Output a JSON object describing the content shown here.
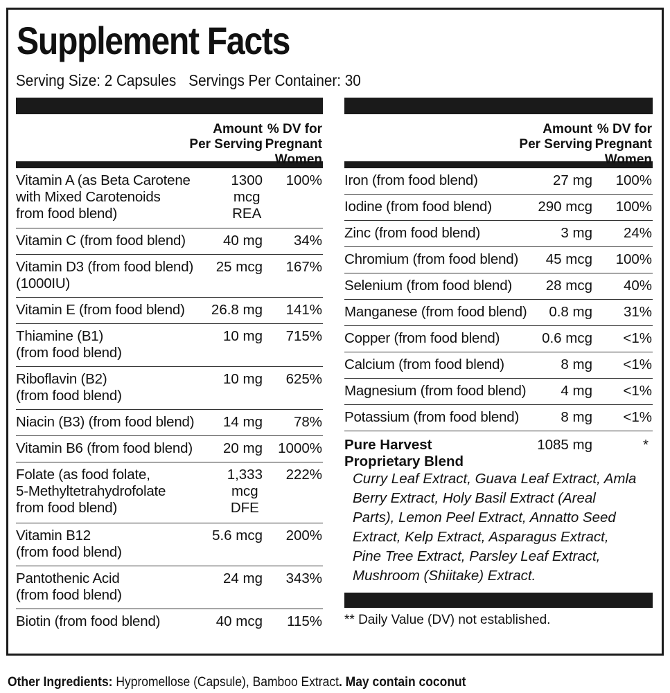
{
  "title": "Supplement Facts",
  "serving_size": "Serving Size: 2 Capsules",
  "servings_per_container": "Servings Per Container: 30",
  "header": {
    "amount": "Amount\nPer Serving",
    "dv": "% DV for\nPregnant\nWomen"
  },
  "left_rows": [
    {
      "name": "Vitamin A (as Beta Carotene\nwith Mixed Carotenoids\nfrom food blend)",
      "amount": "1300\nmcg\nREA",
      "dv": "100%"
    },
    {
      "name": "Vitamin C (from food blend)",
      "amount": "40 mg",
      "dv": "34%"
    },
    {
      "name": "Vitamin D3 (from food blend)\n(1000IU)",
      "amount": "25 mcg",
      "dv": "167%"
    },
    {
      "name": "Vitamin E (from food blend)",
      "amount": "26.8 mg",
      "dv": "141%"
    },
    {
      "name": "Thiamine (B1)\n(from food blend)",
      "amount": "10 mg",
      "dv": "715%"
    },
    {
      "name": "Riboflavin (B2)\n(from food blend)",
      "amount": "10 mg",
      "dv": "625%"
    },
    {
      "name": "Niacin (B3) (from food blend)",
      "amount": "14 mg",
      "dv": "78%"
    },
    {
      "name": "Vitamin B6 (from food blend)",
      "amount": "20 mg",
      "dv": "1000%"
    },
    {
      "name": "Folate (as food folate,\n5-Methyltetrahydrofolate\nfrom food blend)",
      "amount": "1,333\nmcg\nDFE",
      "dv": "222%"
    },
    {
      "name": "Vitamin B12\n(from food blend)",
      "amount": "5.6 mcg",
      "dv": "200%"
    },
    {
      "name": "Pantothenic Acid\n(from food blend)",
      "amount": "24 mg",
      "dv": "343%"
    },
    {
      "name": "Biotin (from food blend)",
      "amount": "40 mcg",
      "dv": "115%"
    }
  ],
  "right_rows": [
    {
      "name": "Iron (from food blend)",
      "amount": "27 mg",
      "dv": "100%"
    },
    {
      "name": "Iodine (from food blend)",
      "amount": "290 mcg",
      "dv": "100%"
    },
    {
      "name": "Zinc (from food blend)",
      "amount": "3 mg",
      "dv": "24%"
    },
    {
      "name": "Chromium (from food blend)",
      "amount": "45 mcg",
      "dv": "100%"
    },
    {
      "name": "Selenium (from food blend)",
      "amount": "28 mcg",
      "dv": "40%"
    },
    {
      "name": "Manganese (from food blend)",
      "amount": "0.8 mg",
      "dv": "31%"
    },
    {
      "name": "Copper (from food blend)",
      "amount": "0.6 mcg",
      "dv": "<1%"
    },
    {
      "name": "Calcium (from food blend)",
      "amount": "8 mg",
      "dv": "<1%"
    },
    {
      "name": "Magnesium (from food blend)",
      "amount": "4 mg",
      "dv": "<1%"
    },
    {
      "name": "Potassium (from food blend)",
      "amount": "8 mg",
      "dv": "<1%"
    }
  ],
  "blend": {
    "name": "Pure Harvest\nProprietary Blend",
    "amount": "1085 mg",
    "dv": "*",
    "ingredients": "Curry Leaf Extract, Guava Leaf Extract, Amla Berry Extract, Holy Basil Extract (Areal Parts), Lemon Peel Extract, Annatto Seed Extract, Kelp Extract, Asparagus Extract, Pine Tree Extract, Parsley Leaf Extract, Mushroom (Shiitake) Extract."
  },
  "footnote": "** Daily Value (DV) not established.",
  "other_ingredients": {
    "label": "Other Ingredients:",
    "text": " Hypromellose (Capsule), Bamboo Extract",
    "warning": ". May contain coconut"
  }
}
